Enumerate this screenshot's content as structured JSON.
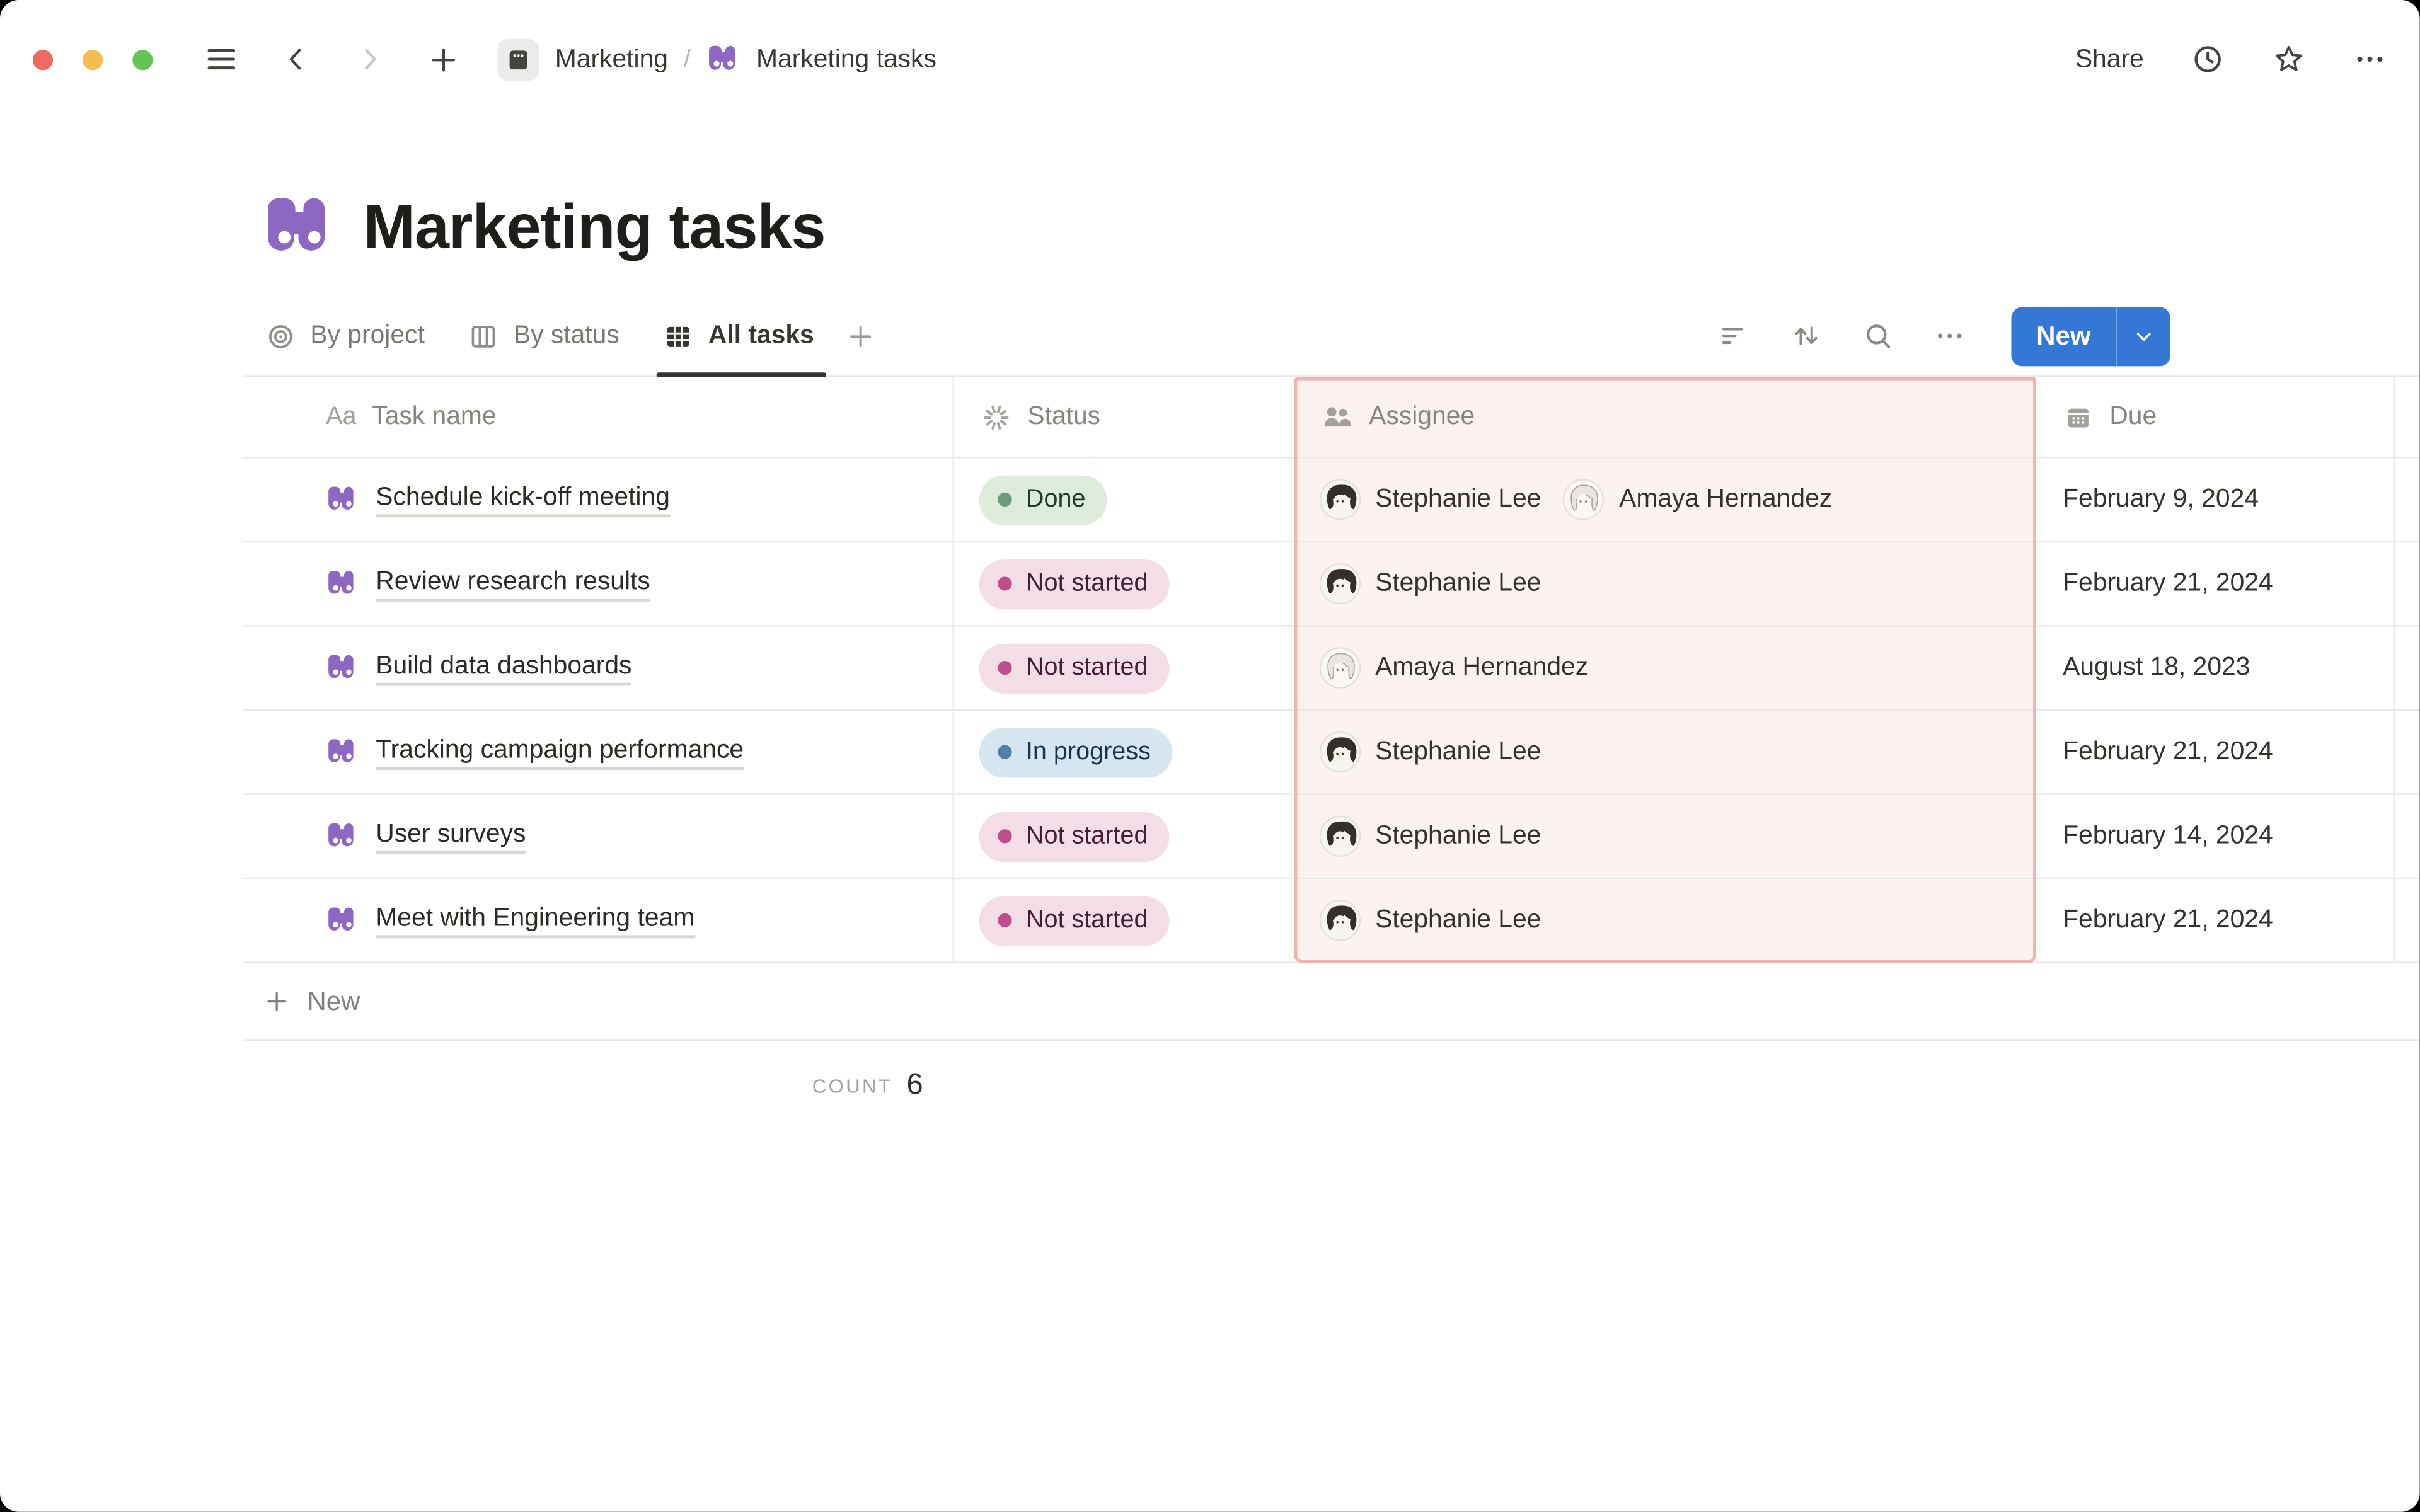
{
  "window": {
    "traffic_lights": [
      "close",
      "minimize",
      "zoom"
    ]
  },
  "topbar": {
    "breadcrumb": {
      "root": "Marketing",
      "separator": "/",
      "current": "Marketing tasks"
    },
    "share_label": "Share"
  },
  "page": {
    "icon": "binoculars-icon",
    "title": "Marketing tasks"
  },
  "views": {
    "tabs": [
      {
        "label": "By project",
        "icon": "target-icon",
        "active": false
      },
      {
        "label": "By status",
        "icon": "board-icon",
        "active": false
      },
      {
        "label": "All tasks",
        "icon": "table-icon",
        "active": true
      }
    ]
  },
  "controls": {
    "new_button_label": "New"
  },
  "icons": {
    "text_icon_glyph": "Aa"
  },
  "people": [
    {
      "name": "Stephanie Lee",
      "avatar": "dark-bob-illustration"
    },
    {
      "name": "Amaya Hernandez",
      "avatar": "light-sketch-illustration"
    }
  ],
  "table": {
    "columns": [
      {
        "label": "Task name",
        "icon": "text-icon",
        "selected": false
      },
      {
        "label": "Status",
        "icon": "spinner-icon",
        "selected": false
      },
      {
        "label": "Assignee",
        "icon": "people-icon",
        "selected": true
      },
      {
        "label": "Due",
        "icon": "calendar-icon",
        "selected": false
      }
    ],
    "rows": [
      {
        "task": "Schedule kick-off meeting",
        "status": "Done",
        "status_color": "green",
        "assignees": [
          "Stephanie Lee",
          "Amaya Hernandez"
        ],
        "due": "February 9, 2024"
      },
      {
        "task": "Review research results",
        "status": "Not started",
        "status_color": "pink",
        "assignees": [
          "Stephanie Lee"
        ],
        "due": "February 21, 2024"
      },
      {
        "task": "Build data dashboards",
        "status": "Not started",
        "status_color": "pink",
        "assignees": [
          "Amaya Hernandez"
        ],
        "due": "August 18, 2023"
      },
      {
        "task": "Tracking campaign performance",
        "status": "In progress",
        "status_color": "blue",
        "assignees": [
          "Stephanie Lee"
        ],
        "due": "February 21, 2024"
      },
      {
        "task": "User surveys",
        "status": "Not started",
        "status_color": "pink",
        "assignees": [
          "Stephanie Lee"
        ],
        "due": "February 14, 2024"
      },
      {
        "task": "Meet with Engineering team",
        "status": "Not started",
        "status_color": "pink",
        "assignees": [
          "Stephanie Lee"
        ],
        "due": "February 21, 2024"
      }
    ],
    "new_row_label": "New",
    "footer": {
      "count_label": "COUNT",
      "count_value": "6"
    }
  },
  "colors": {
    "accent_blue": "#3477D4",
    "icon_purple": "#8D68C3",
    "selected_column_bg": "#FCF2F0",
    "selected_column_border": "#F1B3AE",
    "status_green_bg": "#DCEBDA",
    "status_green_dot": "#6D9B79",
    "status_pink_bg": "#F3DEE8",
    "status_pink_dot": "#BE4F8C",
    "status_blue_bg": "#D6E6F0",
    "status_blue_dot": "#527DA5",
    "traffic_red": "#EE6A5F",
    "traffic_yellow": "#F5BD4F",
    "traffic_green": "#61C454"
  }
}
